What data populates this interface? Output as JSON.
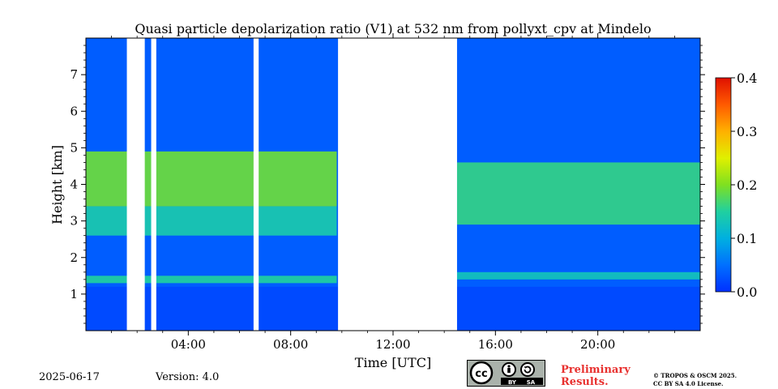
{
  "chart_data": {
    "type": "heatmap",
    "title": "Quasi particle depolarization ratio (V1) at 532 nm from pollyxt_cpv at Mindelo",
    "xlabel": "Time [UTC]",
    "ylabel": "Height [km]",
    "xlim_hours": [
      0,
      24
    ],
    "ylim_km": [
      0,
      8
    ],
    "x_ticks": [
      {
        "value": 4,
        "label": "04:00"
      },
      {
        "value": 8,
        "label": "08:00"
      },
      {
        "value": 12,
        "label": "12:00"
      },
      {
        "value": 16,
        "label": "16:00"
      },
      {
        "value": 20,
        "label": "20:00"
      }
    ],
    "y_ticks": [
      {
        "value": 1,
        "label": "1"
      },
      {
        "value": 2,
        "label": "2"
      },
      {
        "value": 3,
        "label": "3"
      },
      {
        "value": 4,
        "label": "4"
      },
      {
        "value": 5,
        "label": "5"
      },
      {
        "value": 6,
        "label": "6"
      },
      {
        "value": 7,
        "label": "7"
      }
    ],
    "colorbar": {
      "min": 0.0,
      "max": 0.4,
      "colormap": "jet",
      "ticks": [
        {
          "value": 0.0,
          "label": "0.0"
        },
        {
          "value": 0.1,
          "label": "0.1"
        },
        {
          "value": 0.2,
          "label": "0.2"
        },
        {
          "value": 0.3,
          "label": "0.3"
        },
        {
          "value": 0.4,
          "label": "0.4"
        }
      ]
    },
    "no_data_intervals_hours": [
      [
        1.6,
        2.3
      ],
      [
        2.55,
        2.75
      ],
      [
        6.55,
        6.75
      ],
      [
        9.85,
        14.5
      ]
    ],
    "layers": [
      {
        "t_start": 0.0,
        "t_end": 9.8,
        "h_bottom": 3.4,
        "h_top": 4.9,
        "value": 0.19
      },
      {
        "t_start": 0.0,
        "t_end": 9.8,
        "h_bottom": 2.6,
        "h_top": 3.4,
        "value": 0.14
      },
      {
        "t_start": 0.0,
        "t_end": 9.8,
        "h_bottom": 1.3,
        "h_top": 1.5,
        "value": 0.15
      },
      {
        "t_start": 14.5,
        "t_end": 24.0,
        "h_bottom": 2.9,
        "h_top": 4.6,
        "value": 0.16
      },
      {
        "t_start": 14.5,
        "t_end": 24.0,
        "h_bottom": 1.4,
        "h_top": 1.6,
        "value": 0.13
      }
    ]
  },
  "footer": {
    "date": "2025-06-17",
    "version": "Version: 4.0",
    "cc_labels": [
      "BY",
      "SA"
    ],
    "preliminary_line1": "Preliminary",
    "preliminary_line2": "Results.",
    "copyright_line1": "© TROPOS & OSCM 2025.",
    "copyright_line2": "CC BY SA 4.0 License."
  },
  "colors": {
    "accent_red": "#e8312f",
    "badge_grey": "#aab2ab"
  }
}
